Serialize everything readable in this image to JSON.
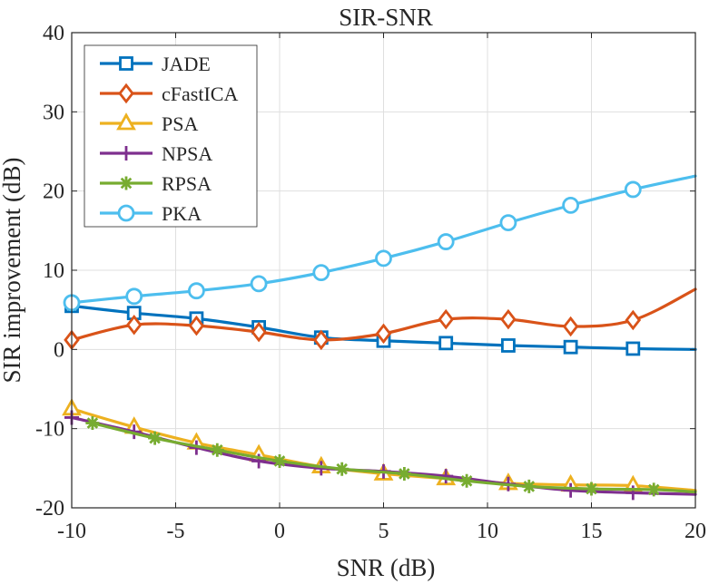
{
  "chart_data": {
    "type": "line",
    "title": "SIR-SNR",
    "xlabel": "SNR (dB)",
    "ylabel": "SIR improvement (dB)",
    "xlim": [
      -10,
      20
    ],
    "ylim": [
      -20,
      40
    ],
    "xticks": [
      -10,
      -5,
      0,
      5,
      10,
      15,
      20
    ],
    "yticks": [
      -20,
      -10,
      0,
      10,
      20,
      30,
      40
    ],
    "grid": true,
    "legend_position": "top-left",
    "series": [
      {
        "name": "JADE",
        "color": "#0072BD",
        "marker": "square",
        "x": [
          -10,
          -7,
          -4,
          -1,
          2,
          5,
          8,
          11,
          14,
          17,
          20
        ],
        "y": [
          5.5,
          4.6,
          3.9,
          2.8,
          1.5,
          1.1,
          0.8,
          0.5,
          0.3,
          0.1,
          0.0
        ],
        "marker_x": [
          -10,
          -7,
          -4,
          -1,
          2,
          5,
          8,
          11,
          14,
          17
        ]
      },
      {
        "name": "cFastICA",
        "color": "#D95319",
        "marker": "diamond",
        "x": [
          -10,
          -7,
          -4,
          -1,
          2,
          5,
          8,
          11,
          14,
          17,
          20
        ],
        "y": [
          1.2,
          3.1,
          3.0,
          2.2,
          1.2,
          2.0,
          3.8,
          3.8,
          2.9,
          3.7,
          7.6
        ],
        "marker_x": [
          -10,
          -7,
          -4,
          -1,
          2,
          5,
          8,
          11,
          14,
          17
        ]
      },
      {
        "name": "PSA",
        "color": "#EDB120",
        "marker": "triangle",
        "x": [
          -10,
          -7,
          -4,
          -1,
          2,
          5,
          8,
          11,
          14,
          17,
          20
        ],
        "y": [
          -7.5,
          -9.8,
          -11.8,
          -13.3,
          -14.8,
          -15.7,
          -16.3,
          -16.9,
          -17.1,
          -17.2,
          -17.8
        ],
        "marker_x": [
          -10,
          -7,
          -4,
          -1,
          2,
          5,
          8,
          11,
          14,
          17
        ]
      },
      {
        "name": "NPSA",
        "color": "#7E2F8E",
        "marker": "plus",
        "x": [
          -10,
          -7,
          -4,
          -1,
          2,
          5,
          8,
          11,
          14,
          17,
          20
        ],
        "y": [
          -8.6,
          -10.4,
          -12.4,
          -14.1,
          -15.0,
          -15.4,
          -16.0,
          -17.0,
          -17.8,
          -18.1,
          -18.3
        ],
        "marker_x": [
          -10,
          -7,
          -4,
          -1,
          2,
          5,
          8,
          11,
          14,
          17
        ]
      },
      {
        "name": "RPSA",
        "color": "#77AC30",
        "marker": "asterisk",
        "x": [
          -9,
          -6,
          -3,
          0,
          3,
          6,
          9,
          12,
          15,
          18,
          20
        ],
        "y": [
          -9.3,
          -11.2,
          -12.7,
          -14.1,
          -15.1,
          -15.7,
          -16.6,
          -17.3,
          -17.6,
          -17.7,
          -18.0
        ],
        "marker_x": [
          -9,
          -6,
          -3,
          0,
          3,
          6,
          9,
          12,
          15,
          18
        ]
      },
      {
        "name": "PKA",
        "color": "#4DBEEE",
        "marker": "circle",
        "x": [
          -10,
          -7,
          -4,
          -1,
          2,
          5,
          8,
          11,
          14,
          17,
          20
        ],
        "y": [
          5.9,
          6.7,
          7.4,
          8.3,
          9.7,
          11.5,
          13.6,
          16.0,
          18.2,
          20.2,
          21.9
        ],
        "marker_x": [
          -10,
          -7,
          -4,
          -1,
          2,
          5,
          8,
          11,
          14,
          17
        ]
      }
    ]
  }
}
